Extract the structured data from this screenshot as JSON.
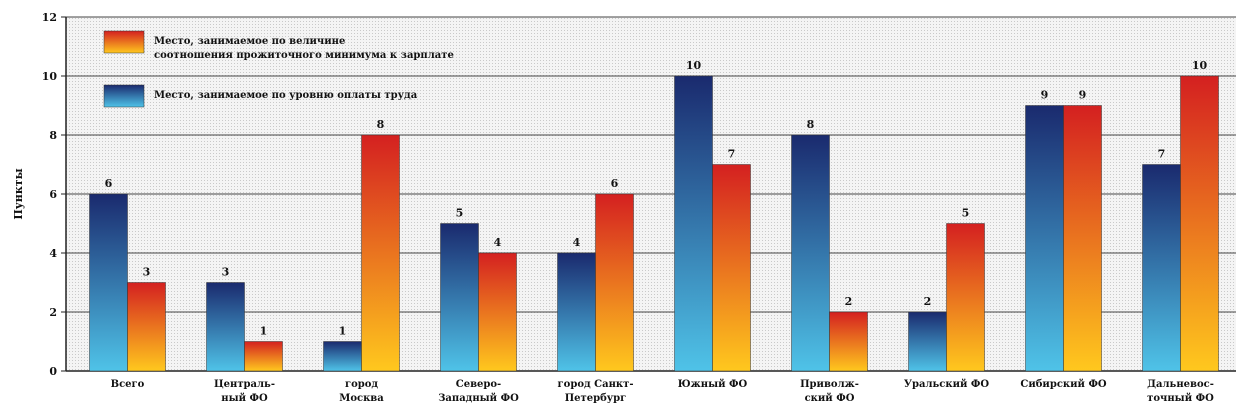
{
  "chart_data": {
    "type": "bar",
    "title": "",
    "xlabel": "",
    "ylabel": "Пункты",
    "ylim": [
      0,
      12
    ],
    "yticks": [
      0,
      2,
      4,
      6,
      8,
      10,
      12
    ],
    "grid": true,
    "legend_position": "top-left",
    "categories": [
      [
        "Всего"
      ],
      [
        "Централь-",
        "ный ФО"
      ],
      [
        "город",
        "Москва"
      ],
      [
        "Северо-",
        "Западный ФО"
      ],
      [
        "город Санкт-",
        "Петербург"
      ],
      [
        "Южный ФО"
      ],
      [
        "Приволж-",
        "ский ФО"
      ],
      [
        "Уральский ФО"
      ],
      [
        "Сибирский ФО"
      ],
      [
        "Дальневос-",
        "точный ФО"
      ]
    ],
    "series": [
      {
        "name": "Место, занимаемое по уровню оплаты труда",
        "color_top": "#1a2a6e",
        "color_bottom": "#4fc3e8",
        "values": [
          6,
          3,
          1,
          5,
          4,
          10,
          8,
          2,
          9,
          7
        ]
      },
      {
        "name": "Место, занимаемое по величине соотношения прожиточного минимума к зарплате",
        "name_lines": [
          "Место, занимаемое по величине",
          "соотношения прожиточного минимума к зарплате"
        ],
        "color_top": "#d42020",
        "color_bottom": "#ffc81e",
        "values": [
          3,
          1,
          8,
          4,
          6,
          7,
          2,
          5,
          9,
          10
        ]
      }
    ]
  }
}
